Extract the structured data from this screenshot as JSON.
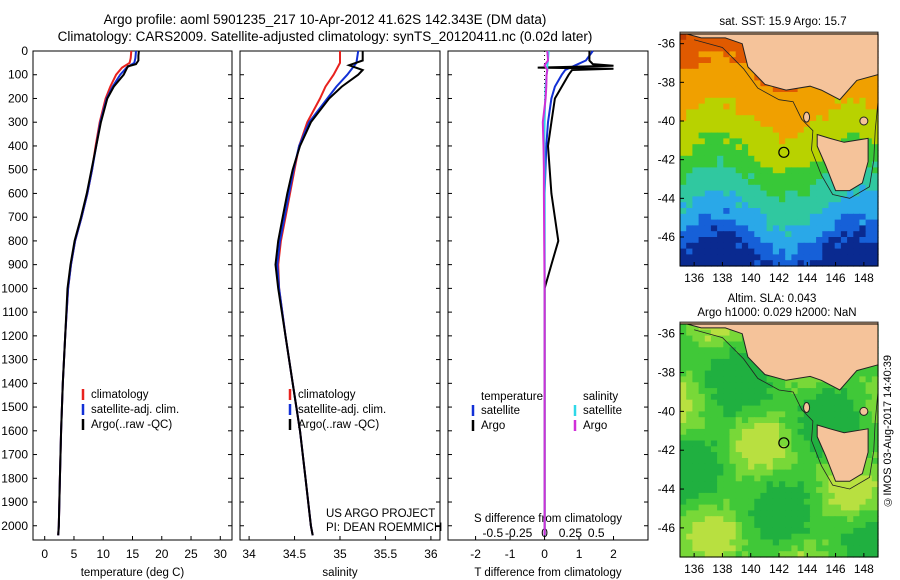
{
  "titles": {
    "line1": "Argo profile: aoml 5901235_217 10-Apr-2012 41.62S 142.343E (DM data)",
    "line2": "Climatology: CARS2009. Satellite-adjusted climatology: synTS_20120411.nc (0.02d later)"
  },
  "colors": {
    "clim": "#e8221e",
    "sat": "#1230d6",
    "argo": "#000000",
    "sat_s": "#2fd8e8",
    "argo_s": "#d02fd8"
  },
  "depth_ticks": [
    0,
    100,
    200,
    300,
    400,
    500,
    600,
    700,
    800,
    900,
    1000,
    1100,
    1200,
    1300,
    1400,
    1500,
    1600,
    1700,
    1800,
    1900,
    2000
  ],
  "chart_data": [
    {
      "type": "line",
      "name": "temperature",
      "xlabel": "temperature (deg C)",
      "xlim": [
        -2,
        32
      ],
      "ylim": [
        2060,
        0
      ],
      "xticks": [
        0,
        5,
        10,
        15,
        20,
        25,
        30
      ],
      "legend": [
        "climatology",
        "satellite-adj. clim.",
        "Argo(..raw -QC)"
      ],
      "series": [
        {
          "name": "climatology",
          "depth": [
            0,
            30,
            50,
            70,
            100,
            150,
            200,
            300,
            400,
            500,
            600,
            700,
            800,
            900,
            1000,
            1200,
            1400,
            1600,
            1800,
            2000,
            2040
          ],
          "values": [
            14.8,
            14.7,
            14.5,
            13.2,
            12.2,
            11.2,
            10.4,
            9.4,
            8.7,
            8.1,
            7.3,
            6.3,
            5.2,
            4.5,
            4.0,
            3.5,
            3.1,
            2.8,
            2.6,
            2.4,
            2.3
          ]
        },
        {
          "name": "satellite-adj. clim.",
          "depth": [
            0,
            30,
            50,
            70,
            100,
            150,
            200,
            300,
            400,
            500,
            600,
            700,
            800,
            900,
            1000,
            1200,
            1400,
            1600,
            1800,
            2000,
            2040
          ],
          "values": [
            15.6,
            15.5,
            15.3,
            14.0,
            12.9,
            11.6,
            10.6,
            9.5,
            8.8,
            8.1,
            7.3,
            6.3,
            5.2,
            4.5,
            4.0,
            3.5,
            3.1,
            2.8,
            2.6,
            2.4,
            2.3
          ]
        },
        {
          "name": "Argo(..raw -QC)",
          "depth": [
            0,
            20,
            40,
            55,
            65,
            75,
            100,
            150,
            200,
            300,
            400,
            500,
            600,
            700,
            800,
            900,
            1000,
            1200,
            1400,
            1600,
            1800,
            2000,
            2040
          ],
          "values": [
            16.1,
            16.0,
            16.0,
            15.6,
            14.2,
            14.0,
            13.5,
            11.8,
            10.7,
            9.6,
            8.8,
            8.0,
            7.2,
            6.2,
            5.1,
            4.4,
            3.9,
            3.5,
            3.1,
            2.8,
            2.6,
            2.4,
            2.3
          ]
        }
      ]
    },
    {
      "type": "line",
      "name": "salinity",
      "xlabel": "salinity",
      "xlim": [
        33.9,
        36.1
      ],
      "ylim": [
        2060,
        0
      ],
      "xticks": [
        34,
        34.5,
        35,
        35.5,
        36
      ],
      "legend": [
        "climatology",
        "satellite-adj. clim.",
        "Argo(..raw -QC)"
      ],
      "credits": [
        "US ARGO PROJECT",
        "PI: DEAN ROEMMICH"
      ],
      "series": [
        {
          "name": "climatology",
          "depth": [
            0,
            50,
            100,
            150,
            200,
            300,
            400,
            500,
            600,
            700,
            800,
            900,
            1000,
            1200,
            1400,
            1600,
            1800,
            2000,
            2040
          ],
          "values": [
            35.0,
            35.0,
            34.93,
            34.84,
            34.78,
            34.64,
            34.55,
            34.5,
            34.45,
            34.4,
            34.35,
            34.32,
            34.33,
            34.4,
            34.48,
            34.56,
            34.62,
            34.68,
            34.7
          ]
        },
        {
          "name": "satellite-adj. clim.",
          "depth": [
            0,
            50,
            100,
            150,
            200,
            300,
            400,
            500,
            600,
            700,
            800,
            900,
            1000,
            1200,
            1400,
            1600,
            1800,
            2000,
            2040
          ],
          "values": [
            35.2,
            35.18,
            35.08,
            34.96,
            34.86,
            34.66,
            34.55,
            34.49,
            34.44,
            34.39,
            34.34,
            34.31,
            34.33,
            34.4,
            34.48,
            34.56,
            34.62,
            34.68,
            34.7
          ]
        },
        {
          "name": "Argo(..raw -QC)",
          "depth": [
            0,
            40,
            60,
            80,
            100,
            150,
            200,
            300,
            400,
            500,
            600,
            700,
            800,
            900,
            1000,
            1200,
            1400,
            1600,
            1800,
            2000,
            2040
          ],
          "values": [
            35.25,
            35.25,
            35.1,
            35.25,
            35.2,
            35.02,
            34.88,
            34.68,
            34.56,
            34.48,
            34.42,
            34.37,
            34.32,
            34.29,
            34.32,
            34.4,
            34.48,
            34.56,
            34.62,
            34.68,
            34.7
          ]
        }
      ]
    },
    {
      "type": "line",
      "name": "differences",
      "xlabel": "T difference from climatology",
      "xlim": [
        -2.8,
        3.0
      ],
      "ylim": [
        2060,
        0
      ],
      "xticks": [
        -2,
        -1,
        0,
        1,
        2
      ],
      "top_label": "S difference from climatology",
      "top_ticks": [
        {
          "v": -1.5,
          "t": "-0.5"
        },
        {
          "v": -0.75,
          "t": "-0.25"
        },
        {
          "v": 0,
          "t": "0"
        },
        {
          "v": 0.75,
          "t": "0.25"
        },
        {
          "v": 1.5,
          "t": "0.5"
        }
      ],
      "legend_left_title": "temperature",
      "legend_right_title": "salinity",
      "legend": [
        "satellite",
        "Argo",
        "satellite",
        "Argo"
      ],
      "series": [
        {
          "name": "temperature satellite",
          "depth": [
            0,
            40,
            60,
            80,
            100,
            150,
            200,
            300,
            400,
            600,
            800,
            1000,
            1200,
            1600,
            2040
          ],
          "values": [
            1.4,
            1.2,
            0.9,
            0.6,
            0.5,
            0.3,
            0.2,
            0.1,
            0.05,
            0.0,
            0.0,
            0.0,
            0.0,
            0.0,
            0.0
          ]
        },
        {
          "name": "temperature Argo",
          "depth": [
            0,
            40,
            55,
            62,
            70,
            75,
            80,
            100,
            150,
            200,
            300,
            400,
            600,
            800,
            900,
            1000,
            1200,
            1600,
            2040
          ],
          "values": [
            1.3,
            1.3,
            1.4,
            2.0,
            -0.2,
            2.0,
            0.8,
            0.7,
            0.5,
            0.3,
            0.2,
            0.1,
            0.2,
            0.4,
            0.2,
            0.0,
            0.0,
            0.0,
            0.0
          ]
        },
        {
          "name": "salinity satellite",
          "depth": [
            0,
            40,
            60,
            80,
            100,
            150,
            200,
            300,
            400,
            500,
            600,
            800,
            1000,
            1400,
            2040
          ],
          "values": [
            0.12,
            0.1,
            0.08,
            0.08,
            0.06,
            0.03,
            0.02,
            0.0,
            -0.01,
            0.0,
            0.0,
            0.0,
            0.0,
            0.0,
            0.0
          ]
        },
        {
          "name": "salinity Argo",
          "depth": [
            0,
            40,
            60,
            80,
            100,
            150,
            200,
            300,
            400,
            500,
            600,
            800,
            1000,
            1400,
            2040
          ],
          "values": [
            0.08,
            0.1,
            0.0,
            0.08,
            0.06,
            0.05,
            0.03,
            -0.05,
            -0.03,
            -0.02,
            -0.02,
            -0.01,
            0.0,
            0.0,
            0.0
          ]
        }
      ]
    },
    {
      "type": "heatmap",
      "name": "sst map",
      "title": "sat. SST: 15.9 Argo: 15.7",
      "xticks": [
        "136",
        "138",
        "140",
        "142",
        "144",
        "146",
        "148"
      ],
      "yticks": [
        "-36",
        "-38",
        "-40",
        "-42",
        "-44",
        "-46"
      ],
      "xlim": [
        135,
        149
      ],
      "ylim": [
        -47.5,
        -35.5
      ]
    },
    {
      "type": "heatmap",
      "name": "sla map",
      "title1": "Altim. SLA: 0.043",
      "title2": "Argo h1000: 0.029 h2000: NaN",
      "xticks": [
        "136",
        "138",
        "140",
        "142",
        "144",
        "146",
        "148"
      ],
      "yticks": [
        "-36",
        "-38",
        "-40",
        "-42",
        "-44",
        "-46"
      ],
      "xlim": [
        135,
        149
      ],
      "ylim": [
        -47.5,
        -35.5
      ]
    }
  ],
  "stamp": "©IMOS 03-Aug-2017 14:40:39"
}
